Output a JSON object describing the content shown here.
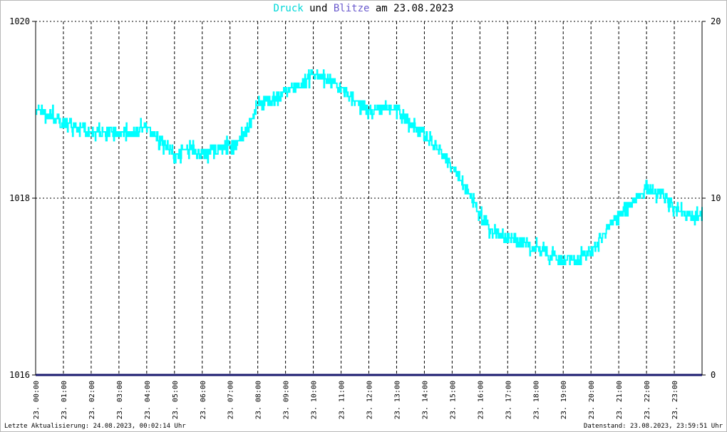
{
  "title": {
    "part1": "Druck",
    "part2": " und ",
    "part3": "Blitze",
    "part4": " am 23.08.2023",
    "color1": "#00d8d8",
    "color3": "#6a5acd"
  },
  "footer": {
    "left": "Letzte Aktualisierung: 24.08.2023, 00:02:14 Uhr",
    "right": "Datenstand: 23.08.2023, 23:59:51 Uhr"
  },
  "chart_data": {
    "type": "line",
    "title": "Druck und Blitze am 23.08.2023",
    "xlabel": "",
    "ylabel": "",
    "grid": true,
    "ylim": [
      1016,
      1020
    ],
    "y2lim": [
      0,
      20
    ],
    "yticks": [
      "1016",
      "1018",
      "1020"
    ],
    "y2ticks": [
      "0",
      "10",
      "20"
    ],
    "xticks": [
      "23. 00:00",
      "23. 01:00",
      "23. 02:00",
      "23. 03:00",
      "23. 04:00",
      "23. 05:00",
      "23. 06:00",
      "23. 07:00",
      "23. 08:00",
      "23. 09:00",
      "23. 10:00",
      "23. 11:00",
      "23. 12:00",
      "23. 13:00",
      "23. 14:00",
      "23. 15:00",
      "23. 16:00",
      "23. 17:00",
      "23. 18:00",
      "23. 19:00",
      "23. 20:00",
      "23. 21:00",
      "23. 22:00",
      "23. 23:00"
    ],
    "series": [
      {
        "name": "Druck",
        "color": "#00ffff",
        "axis": "left",
        "x": [
          0,
          0.5,
          1,
          1.5,
          2,
          2.5,
          3,
          3.5,
          4,
          4.5,
          5,
          5.5,
          6,
          6.5,
          7,
          7.5,
          8,
          8.5,
          9,
          9.5,
          10,
          10.5,
          11,
          11.5,
          12,
          12.5,
          13,
          13.5,
          14,
          14.5,
          15,
          15.5,
          16,
          16.5,
          17,
          17.5,
          18,
          18.5,
          19,
          19.5,
          20,
          20.5,
          21,
          21.5,
          22,
          22.5,
          23,
          23.5
        ],
        "values": [
          1019.0,
          1018.95,
          1018.85,
          1018.8,
          1018.75,
          1018.75,
          1018.75,
          1018.75,
          1018.8,
          1018.65,
          1018.5,
          1018.55,
          1018.5,
          1018.55,
          1018.6,
          1018.7,
          1019.05,
          1019.1,
          1019.2,
          1019.3,
          1019.4,
          1019.35,
          1019.25,
          1019.1,
          1019.0,
          1019.0,
          1019.0,
          1018.85,
          1018.7,
          1018.55,
          1018.35,
          1018.1,
          1017.8,
          1017.6,
          1017.55,
          1017.5,
          1017.45,
          1017.35,
          1017.3,
          1017.3,
          1017.4,
          1017.6,
          1017.8,
          1017.95,
          1018.1,
          1018.05,
          1017.9,
          1017.8
        ]
      },
      {
        "name": "Blitze",
        "color": "#1a1a6e",
        "axis": "right",
        "x": [
          0,
          23.99
        ],
        "values": [
          0,
          0
        ]
      }
    ]
  }
}
